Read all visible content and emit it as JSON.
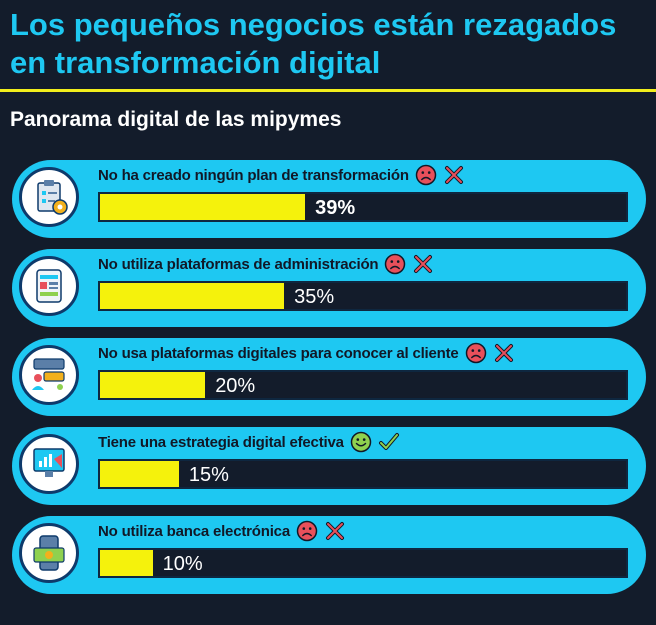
{
  "header": {
    "title": "Los pequeños negocios están rezagados en transformación digital",
    "subtitle": "Panorama digital de las mipymes"
  },
  "colors": {
    "background": "#131c2b",
    "accent": "#1ec8f2",
    "bar": "#f5f20c",
    "negative": "#e8505b",
    "positive": "#8fd14f"
  },
  "chart_data": {
    "type": "bar",
    "orientation": "horizontal",
    "unit": "%",
    "xlim": [
      0,
      100
    ],
    "categories": [
      "No ha creado ningún plan de transformación",
      "No utiliza plataformas de administración",
      "No usa plataformas digitales para conocer al cliente",
      "Tiene una estrategia digital efectiva",
      "No utiliza banca electrónica"
    ],
    "values": [
      39,
      35,
      20,
      15,
      10
    ],
    "labels": [
      "39%",
      "35%",
      "20%",
      "15%",
      "10%"
    ],
    "sentiment": [
      "negative",
      "negative",
      "negative",
      "positive",
      "negative"
    ],
    "icons": [
      "clipboard-gear-icon",
      "phone-dashboard-icon",
      "customer-chat-icon",
      "megaphone-chart-icon",
      "phone-money-icon"
    ]
  }
}
